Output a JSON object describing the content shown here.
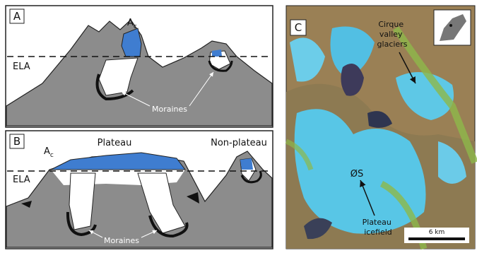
{
  "panels": [
    {
      "letter": "A",
      "accumulation_label": {
        "main": "A",
        "sub": "c"
      },
      "ela": "ELA",
      "moraines": "Moraines"
    },
    {
      "letter": "B",
      "accumulation_label": {
        "main": "A",
        "sub": "c"
      },
      "ela": "ELA",
      "moraines": "Moraines",
      "plateau": "Plateau",
      "non_plateau": "Non-plateau"
    },
    {
      "letter": "C",
      "cirque": [
        "Cirque",
        "valley",
        "glaciers"
      ],
      "icefield_name": "ØS",
      "icefield": [
        "Plateau",
        "icefield"
      ],
      "scale": "6 km"
    }
  ]
}
